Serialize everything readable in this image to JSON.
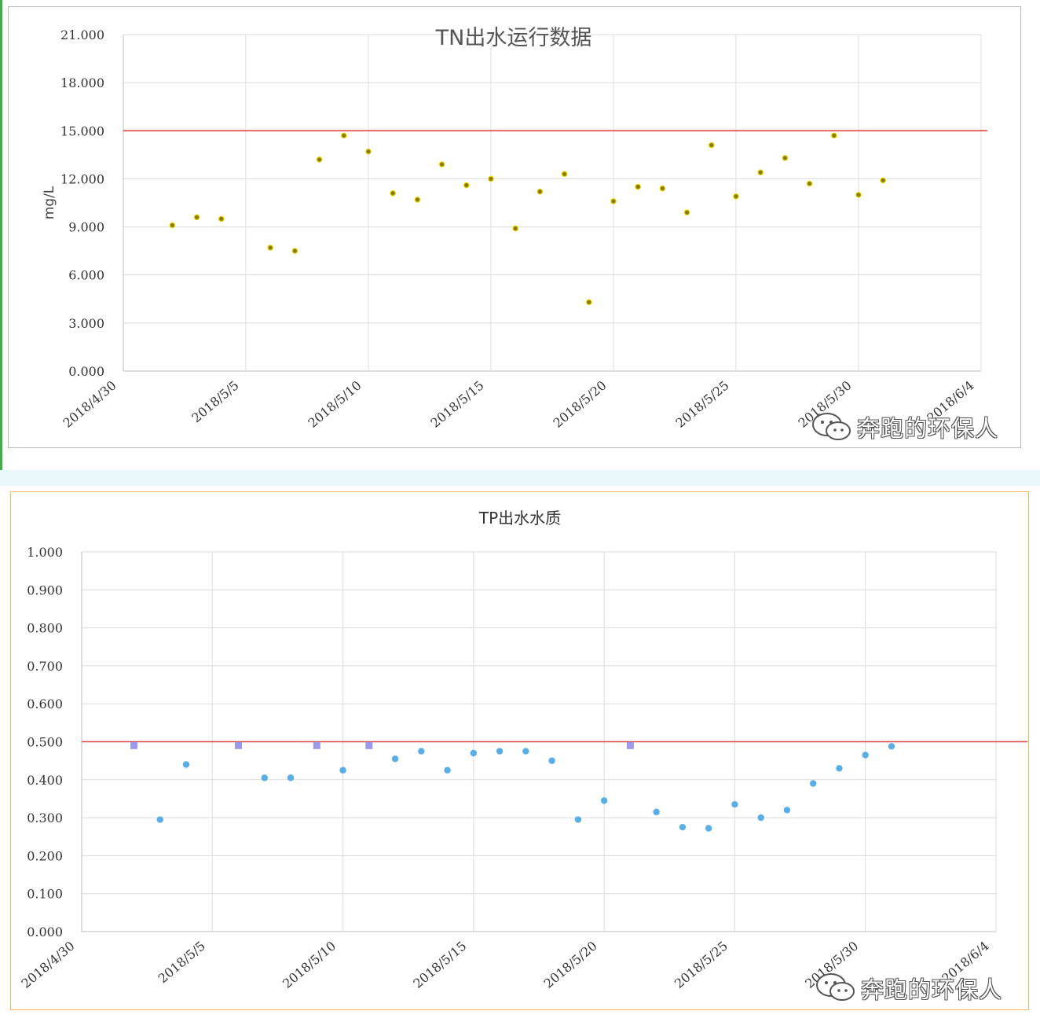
{
  "chart_data": [
    {
      "type": "scatter",
      "title": "TN出水运行数据",
      "xlabel": "",
      "ylabel": "mg/L",
      "ylim": [
        0,
        21
      ],
      "yticks": [
        "21.000",
        "18.000",
        "15.000",
        "12.000",
        "9.000",
        "6.000",
        "3.000",
        "0.000"
      ],
      "xticks": [
        "2018/4/30",
        "2018/5/5",
        "2018/5/10",
        "2018/5/15",
        "2018/5/20",
        "2018/5/25",
        "2018/5/30",
        "2018/6/4"
      ],
      "grid": true,
      "reference_line": 15.0,
      "marker_color": "#8a7a00",
      "line_color": "#e0443c",
      "series": [
        {
          "x": [
            "2018/5/2",
            "2018/5/3",
            "2018/5/4",
            "2018/5/6",
            "2018/5/7",
            "2018/5/8",
            "2018/5/9",
            "2018/5/10",
            "2018/5/11",
            "2018/5/12",
            "2018/5/13",
            "2018/5/14",
            "2018/5/15",
            "2018/5/16",
            "2018/5/17",
            "2018/5/18",
            "2018/5/19",
            "2018/5/20",
            "2018/5/21",
            "2018/5/22",
            "2018/5/23",
            "2018/5/24",
            "2018/5/25",
            "2018/5/26",
            "2018/5/27",
            "2018/5/28",
            "2018/5/29",
            "2018/5/30",
            "2018/5/31"
          ],
          "y": [
            9.1,
            9.6,
            9.5,
            7.7,
            7.5,
            13.2,
            14.7,
            13.7,
            11.1,
            10.7,
            12.9,
            11.6,
            12.0,
            8.9,
            11.2,
            12.3,
            4.3,
            10.6,
            11.5,
            11.4,
            9.9,
            14.1,
            10.9,
            12.4,
            13.3,
            11.7,
            14.7,
            11.0,
            11.9
          ]
        }
      ]
    },
    {
      "type": "scatter",
      "title": "TP出水水质",
      "xlabel": "",
      "ylabel": "",
      "ylim": [
        0,
        1
      ],
      "yticks": [
        "1.000",
        "0.900",
        "0.800",
        "0.700",
        "0.600",
        "0.500",
        "0.400",
        "0.300",
        "0.200",
        "0.100",
        "0.000"
      ],
      "xticks": [
        "2018/4/30",
        "2018/5/5",
        "2018/5/10",
        "2018/5/15",
        "2018/5/20",
        "2018/5/25",
        "2018/5/30",
        "2018/6/4"
      ],
      "grid": true,
      "reference_line": 0.5,
      "marker_color": "#5aaee8",
      "square_marker_color": "#9a9ae8",
      "line_color": "#e0443c",
      "series": [
        {
          "x": [
            "2018/5/2",
            "2018/5/3",
            "2018/5/4",
            "2018/5/6",
            "2018/5/7",
            "2018/5/8",
            "2018/5/9",
            "2018/5/10",
            "2018/5/11",
            "2018/5/12",
            "2018/5/13",
            "2018/5/14",
            "2018/5/15",
            "2018/5/16",
            "2018/5/17",
            "2018/5/18",
            "2018/5/19",
            "2018/5/20",
            "2018/5/21",
            "2018/5/22",
            "2018/5/23",
            "2018/5/24",
            "2018/5/25",
            "2018/5/26",
            "2018/5/27",
            "2018/5/28",
            "2018/5/29",
            "2018/5/30",
            "2018/5/31"
          ],
          "y": [
            0.49,
            0.295,
            0.44,
            0.49,
            0.405,
            0.405,
            0.49,
            0.425,
            0.49,
            0.455,
            0.475,
            0.425,
            0.47,
            0.475,
            0.475,
            0.45,
            0.295,
            0.345,
            0.49,
            0.315,
            0.275,
            0.272,
            0.335,
            0.3,
            0.32,
            0.39,
            0.43,
            0.465,
            0.488
          ],
          "square": [
            true,
            false,
            false,
            true,
            false,
            false,
            true,
            false,
            true,
            false,
            false,
            false,
            false,
            false,
            false,
            false,
            false,
            false,
            true,
            false,
            false,
            false,
            false,
            false,
            false,
            false,
            false,
            false,
            false
          ]
        }
      ]
    }
  ],
  "watermark": {
    "text": "奔跑的环保人",
    "icon": "wechat-icon"
  }
}
